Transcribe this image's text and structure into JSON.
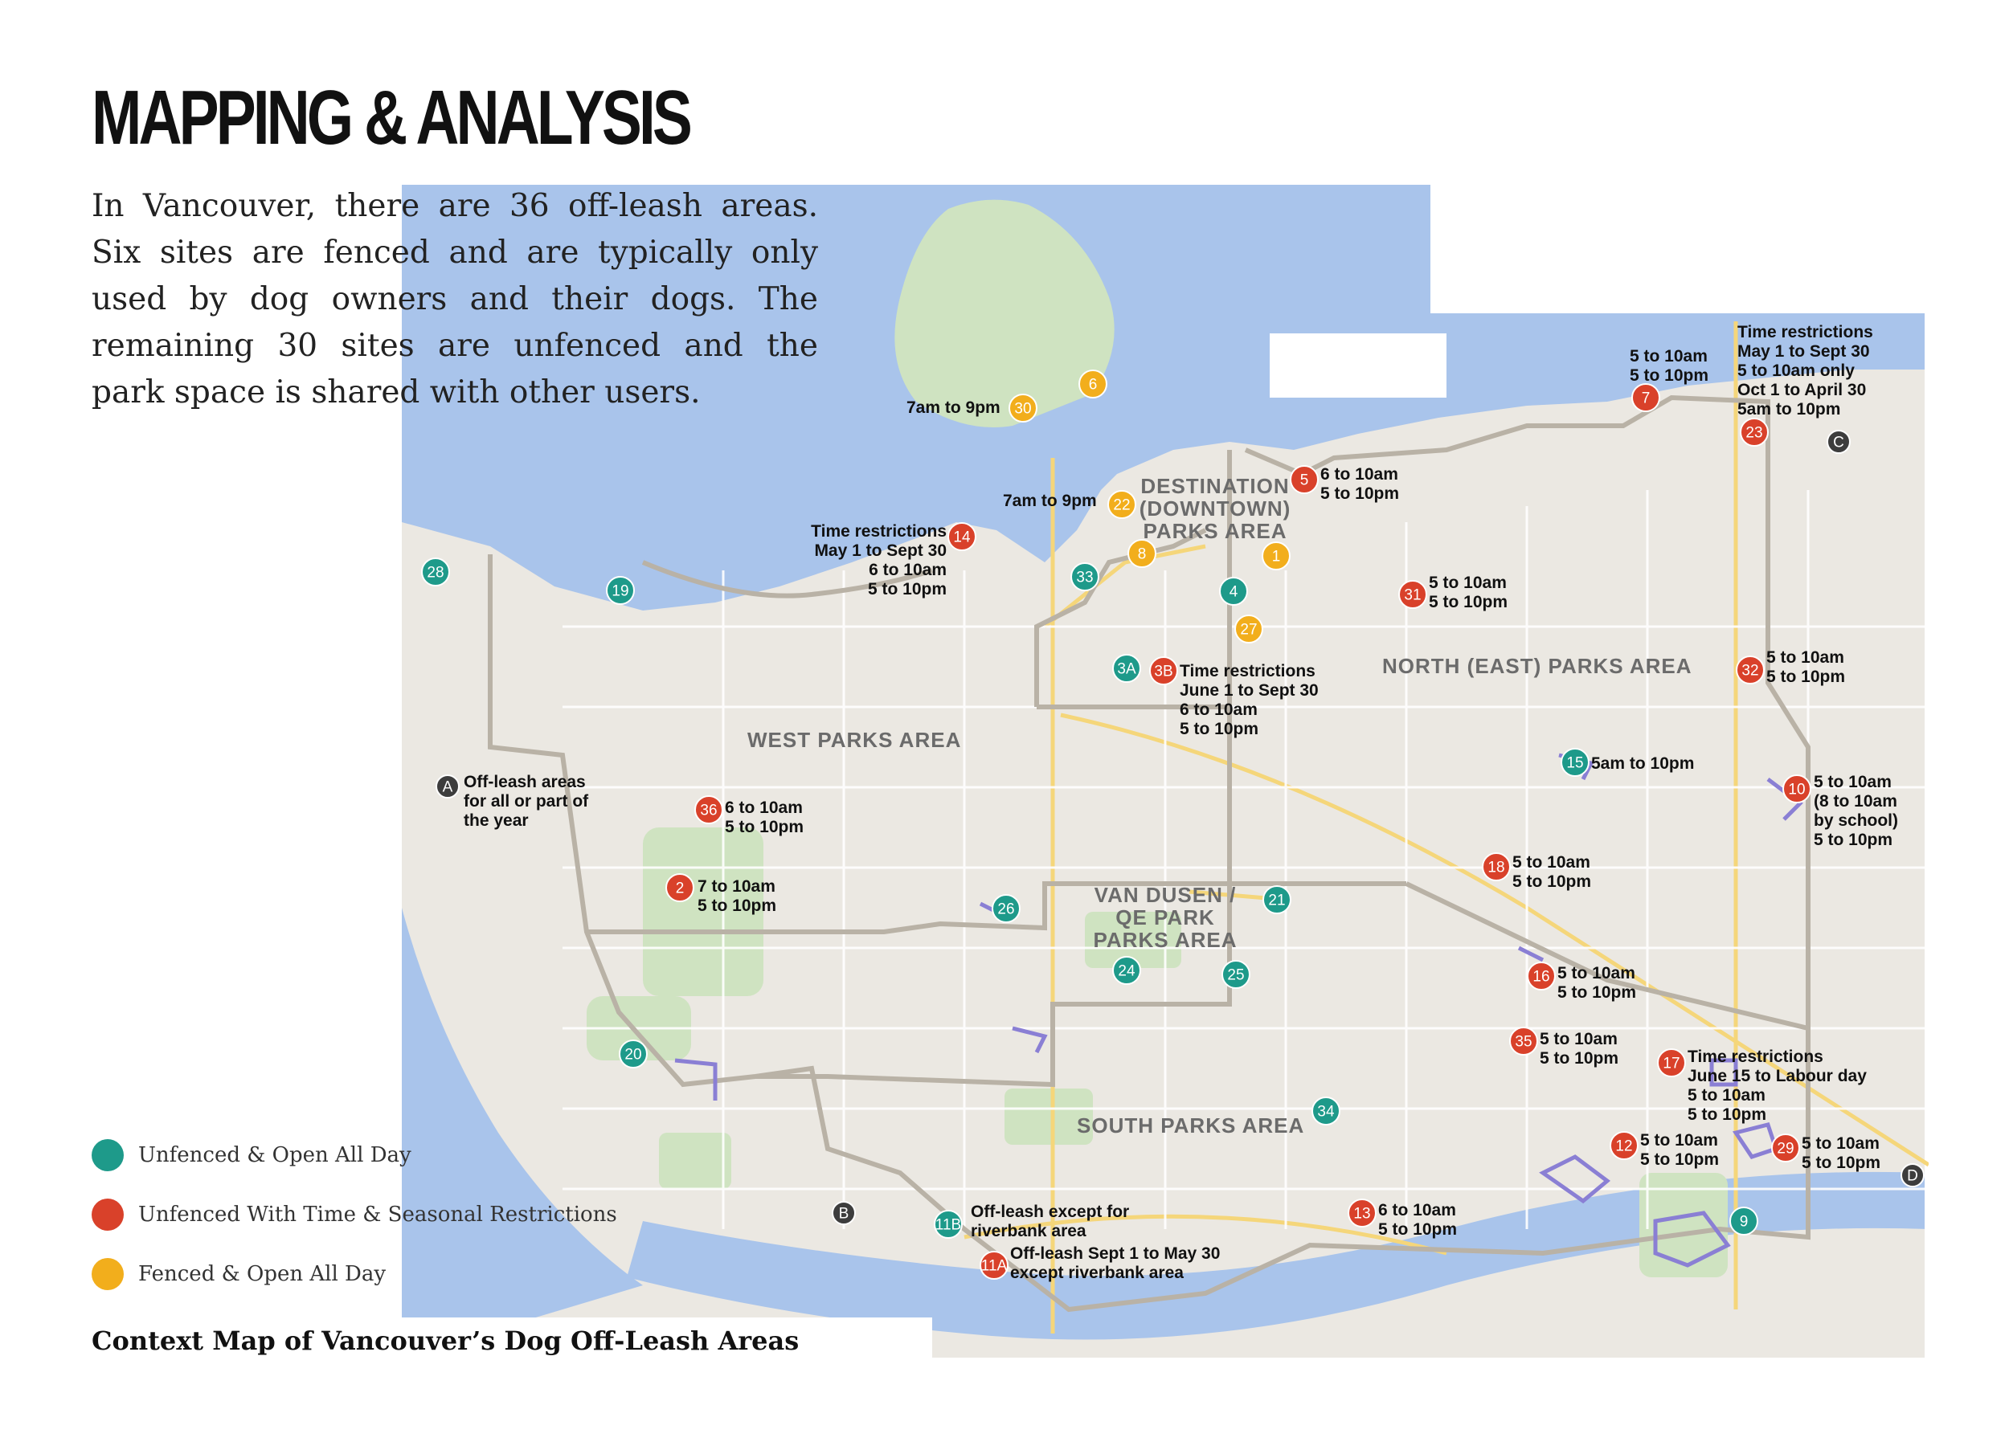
{
  "page": {
    "title": "MAPPING & ANALYSIS",
    "intro": "In Vancouver, there are 36 off-leash areas. Six sites are fenced and are typically only used by dog owners and their dogs. The remaining 30 sites are unfenced and the park space is shared with other users.",
    "caption": "Context Map of Vancouver’s Dog Off-Leash Areas"
  },
  "colors": {
    "unfenced": "#1e9a8a",
    "restricted": "#d9412a",
    "fenced": "#f2ae1c",
    "letter": "#3d3d3d",
    "water": "#a9c4eb",
    "land": "#ebe8e2"
  },
  "legend": [
    {
      "label": "Unfenced & Open All Day",
      "color": "#1e9a8a"
    },
    {
      "label": "Unfenced With Time & Seasonal Restrictions",
      "color": "#d9412a"
    },
    {
      "label": "Fenced & Open All Day",
      "color": "#f2ae1c"
    }
  ],
  "areas": [
    {
      "lines": [
        "DESTINATION",
        "(DOWNTOWN)",
        "PARKS AREA"
      ]
    },
    {
      "lines": [
        "NORTH (EAST) PARKS AREA"
      ]
    },
    {
      "lines": [
        "WEST PARKS AREA"
      ]
    },
    {
      "lines": [
        "VAN DUSEN /",
        "QE PARK",
        "PARKS AREA"
      ]
    },
    {
      "lines": [
        "SOUTH PARKS AREA"
      ]
    }
  ],
  "markers": [
    {
      "id": "30",
      "type": "fenced"
    },
    {
      "id": "6",
      "type": "fenced"
    },
    {
      "id": "22",
      "type": "fenced"
    },
    {
      "id": "8",
      "type": "fenced"
    },
    {
      "id": "1",
      "type": "fenced"
    },
    {
      "id": "27",
      "type": "fenced"
    },
    {
      "id": "28",
      "type": "unfenced"
    },
    {
      "id": "19",
      "type": "unfenced"
    },
    {
      "id": "33",
      "type": "unfenced"
    },
    {
      "id": "4",
      "type": "unfenced"
    },
    {
      "id": "3A",
      "type": "unfenced"
    },
    {
      "id": "15",
      "type": "unfenced"
    },
    {
      "id": "26",
      "type": "unfenced"
    },
    {
      "id": "21",
      "type": "unfenced"
    },
    {
      "id": "24",
      "type": "unfenced"
    },
    {
      "id": "25",
      "type": "unfenced"
    },
    {
      "id": "20",
      "type": "unfenced"
    },
    {
      "id": "34",
      "type": "unfenced"
    },
    {
      "id": "11B",
      "type": "unfenced"
    },
    {
      "id": "9",
      "type": "unfenced"
    },
    {
      "id": "14",
      "type": "restricted"
    },
    {
      "id": "5",
      "type": "restricted"
    },
    {
      "id": "7",
      "type": "restricted"
    },
    {
      "id": "23",
      "type": "restricted"
    },
    {
      "id": "31",
      "type": "restricted"
    },
    {
      "id": "3B",
      "type": "restricted"
    },
    {
      "id": "32",
      "type": "restricted"
    },
    {
      "id": "36",
      "type": "restricted"
    },
    {
      "id": "2",
      "type": "restricted"
    },
    {
      "id": "10",
      "type": "restricted"
    },
    {
      "id": "18",
      "type": "restricted"
    },
    {
      "id": "16",
      "type": "restricted"
    },
    {
      "id": "35",
      "type": "restricted"
    },
    {
      "id": "17",
      "type": "restricted"
    },
    {
      "id": "12",
      "type": "restricted"
    },
    {
      "id": "29",
      "type": "restricted"
    },
    {
      "id": "13",
      "type": "restricted"
    },
    {
      "id": "11A",
      "type": "restricted"
    },
    {
      "id": "A",
      "type": "letter"
    },
    {
      "id": "B",
      "type": "letter"
    },
    {
      "id": "C",
      "type": "letter"
    },
    {
      "id": "D",
      "type": "letter"
    }
  ],
  "notes": [
    {
      "lines": [
        "7am to 9pm"
      ]
    },
    {
      "lines": [
        "7am to 9pm"
      ]
    },
    {
      "lines": [
        "Time restrictions",
        "May 1 to Sept 30",
        "6 to 10am",
        "5 to 10pm"
      ]
    },
    {
      "lines": [
        "6 to 10am",
        "5 to 10pm"
      ]
    },
    {
      "lines": [
        "5 to 10am",
        "5 to 10pm"
      ]
    },
    {
      "lines": [
        "Time restrictions",
        "May 1 to Sept 30",
        "5 to 10am only",
        "Oct 1 to April 30",
        "5am to 10pm"
      ]
    },
    {
      "lines": [
        "5 to 10am",
        "5 to 10pm"
      ]
    },
    {
      "lines": [
        "Time restrictions",
        "June 1 to Sept 30",
        "6 to 10am",
        "5 to 10pm"
      ]
    },
    {
      "lines": [
        "5 to 10am",
        "5 to 10pm"
      ]
    },
    {
      "lines": [
        "5am to 10pm"
      ]
    },
    {
      "lines": [
        "5 to 10am",
        "(8 to 10am",
        "by school)",
        "5 to 10pm"
      ]
    },
    {
      "lines": [
        "Off-leash areas",
        "for all or part of",
        "the year"
      ]
    },
    {
      "lines": [
        "6 to 10am",
        "5 to 10pm"
      ]
    },
    {
      "lines": [
        "7 to 10am",
        "5 to 10pm"
      ]
    },
    {
      "lines": [
        "5 to 10am",
        "5 to 10pm"
      ]
    },
    {
      "lines": [
        "5 to 10am",
        "5 to 10pm"
      ]
    },
    {
      "lines": [
        "5 to 10am",
        "5 to 10pm"
      ]
    },
    {
      "lines": [
        "Time restrictions",
        "June 15 to Labour day",
        "5 to 10am",
        "5 to 10pm"
      ]
    },
    {
      "lines": [
        "5 to 10am",
        "5 to 10pm"
      ]
    },
    {
      "lines": [
        "5 to 10am",
        "5 to 10pm"
      ]
    },
    {
      "lines": [
        "Off-leash except for",
        "riverbank area"
      ]
    },
    {
      "lines": [
        "Off-leash Sept 1 to May 30",
        "except riverbank area"
      ]
    },
    {
      "lines": [
        "6 to 10am",
        "5 to 10pm"
      ]
    }
  ]
}
